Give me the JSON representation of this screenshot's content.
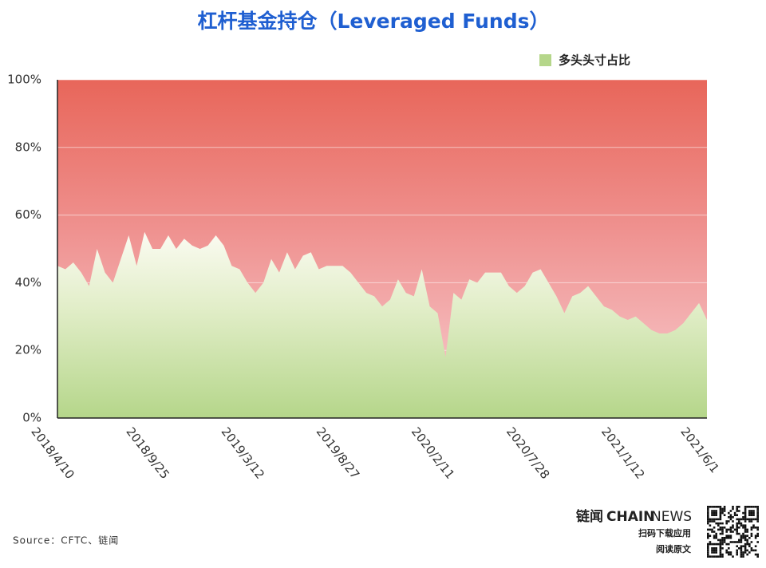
{
  "chart_data": {
    "type": "area",
    "title": "杠杆基金持仓（Leveraged Funds）",
    "categories": [
      "2018/4/10",
      null,
      null,
      null,
      null,
      null,
      null,
      null,
      null,
      null,
      null,
      null,
      "2018/9/25",
      null,
      null,
      null,
      null,
      null,
      null,
      null,
      null,
      null,
      null,
      null,
      "2019/3/12",
      null,
      null,
      null,
      null,
      null,
      null,
      null,
      null,
      null,
      null,
      null,
      "2019/8/27",
      null,
      null,
      null,
      null,
      null,
      null,
      null,
      null,
      null,
      null,
      null,
      "2020/2/11",
      null,
      null,
      null,
      null,
      null,
      null,
      null,
      null,
      null,
      null,
      null,
      "2020/7/28",
      null,
      null,
      null,
      null,
      null,
      null,
      null,
      null,
      null,
      null,
      null,
      "2021/1/12",
      null,
      null,
      null,
      null,
      null,
      null,
      null,
      null,
      null,
      "2021/6/1"
    ],
    "series": [
      {
        "name": "多头头寸占比",
        "color": "#b5d68a",
        "values": [
          45,
          44,
          46,
          43,
          39,
          50,
          43,
          40,
          47,
          54,
          45,
          55,
          50,
          50,
          54,
          50,
          53,
          51,
          50,
          51,
          54,
          51,
          45,
          44,
          40,
          37,
          40,
          47,
          43,
          49,
          44,
          48,
          49,
          44,
          45,
          45,
          45,
          43,
          40,
          37,
          36,
          33,
          35,
          41,
          37,
          36,
          44,
          33,
          31,
          18,
          37,
          35,
          41,
          40,
          43,
          43,
          43,
          39,
          37,
          39,
          43,
          44,
          40,
          36,
          31,
          36,
          37,
          39,
          36,
          33,
          32,
          30,
          29,
          30,
          28,
          26,
          25,
          25,
          26,
          28,
          31,
          34,
          29
        ]
      }
    ],
    "ylim": [
      0,
      100
    ],
    "yticks": [
      {
        "value": 0,
        "label": "0%"
      },
      {
        "value": 20,
        "label": "20%"
      },
      {
        "value": 40,
        "label": "40%"
      },
      {
        "value": 60,
        "label": "60%"
      },
      {
        "value": 80,
        "label": "80%"
      },
      {
        "value": 100,
        "label": "100%"
      }
    ],
    "grid": true,
    "legend": "top-right"
  },
  "footer": {
    "source": "Source：CFTC、链闻",
    "brand": "链闻",
    "brand_en_1": "CHAIN",
    "brand_en_2": "NEWS",
    "line1": "扫码下载应用",
    "line2": "阅读原文"
  }
}
